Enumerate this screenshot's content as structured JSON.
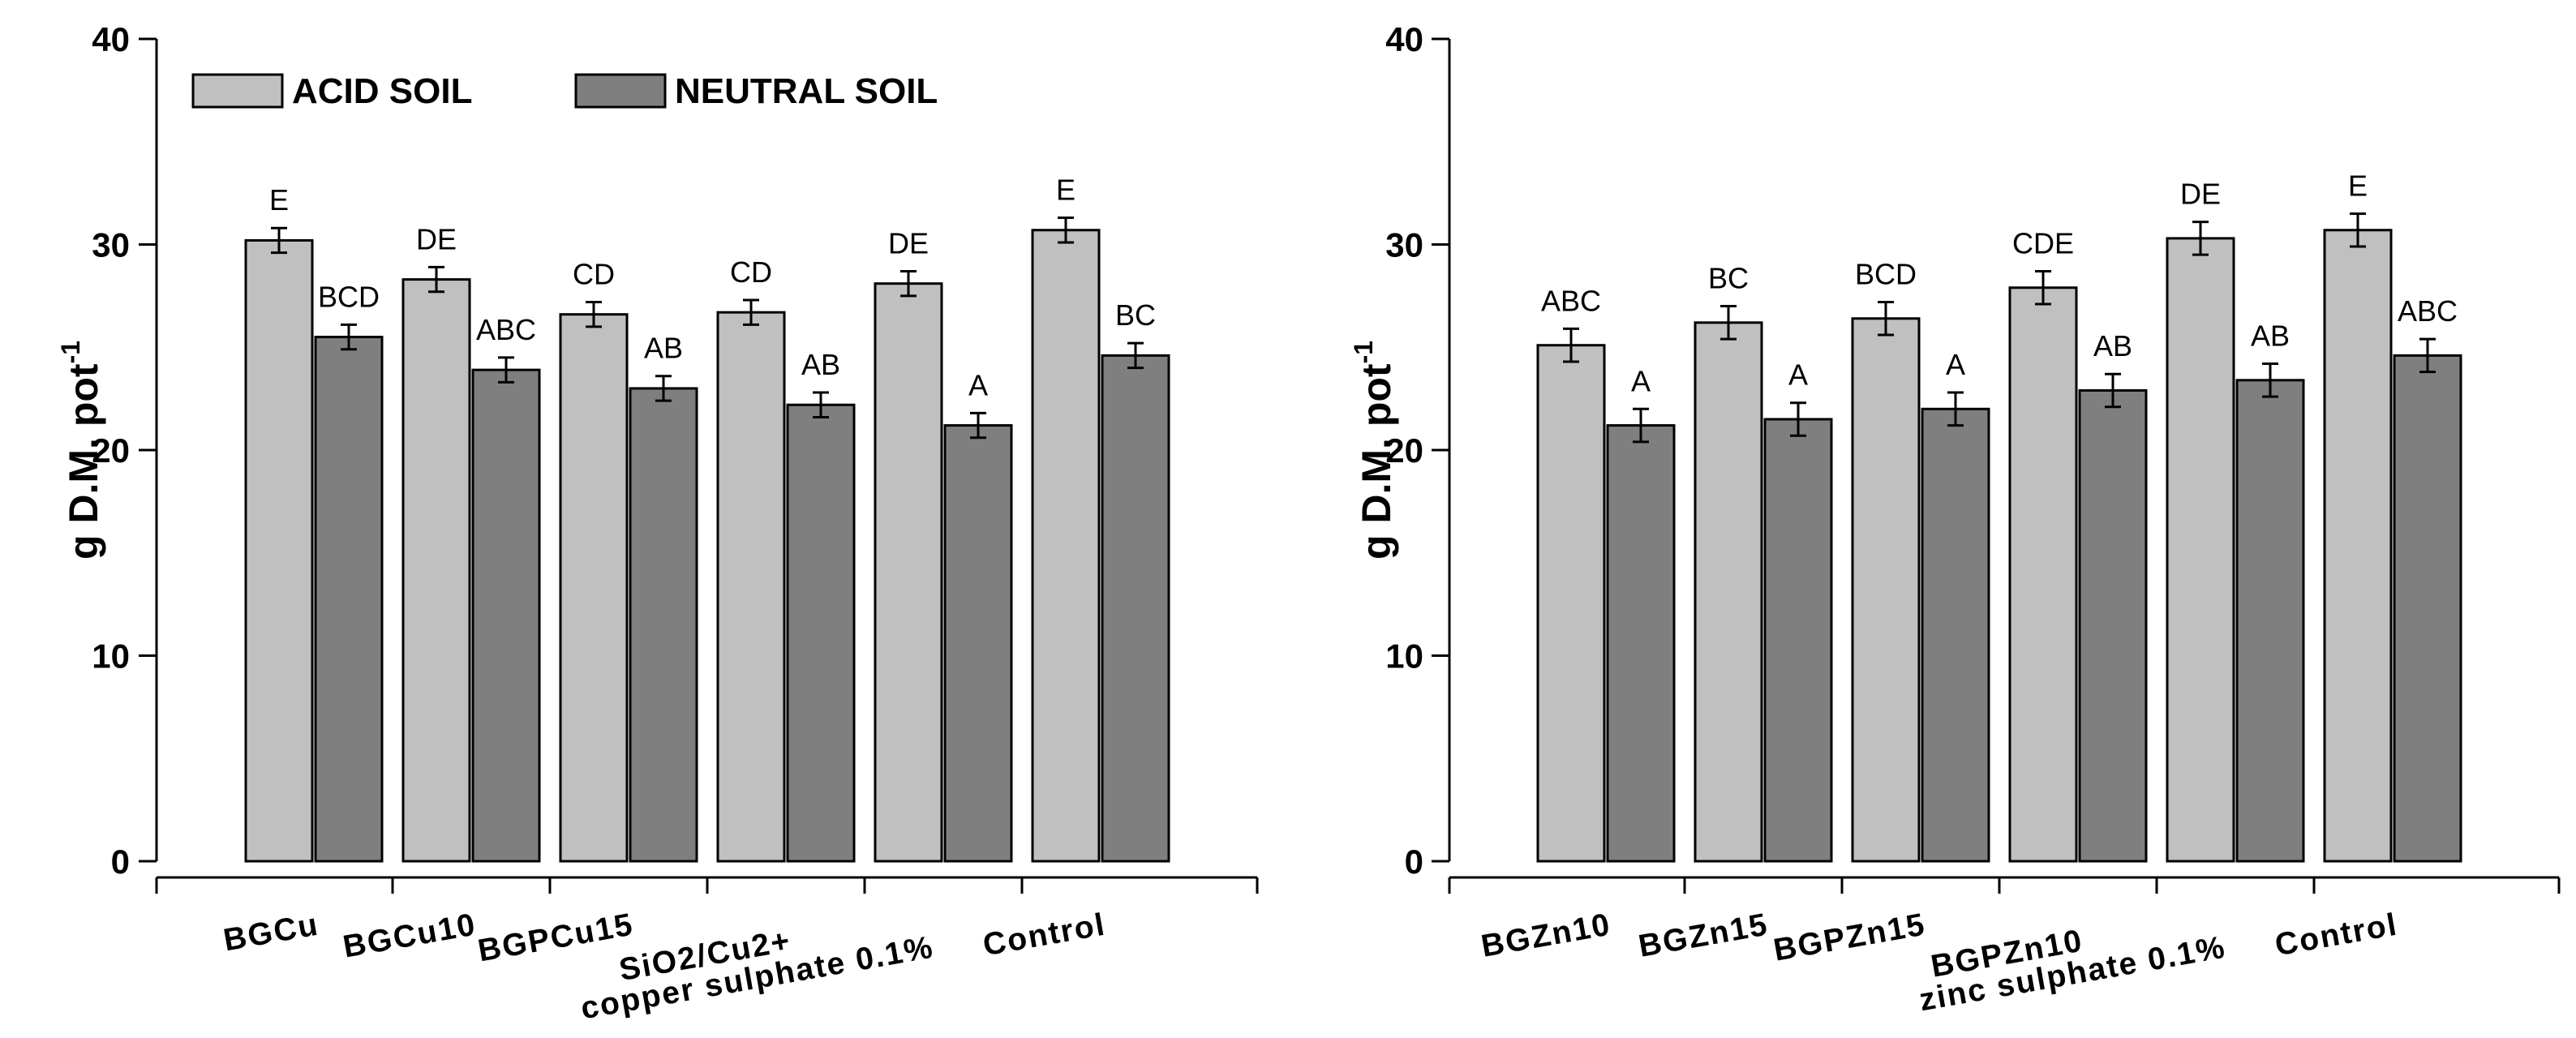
{
  "chart_data": [
    {
      "type": "bar",
      "categories": [
        [
          "BGCu"
        ],
        [
          "BGCu10"
        ],
        [
          "BGPCu15"
        ],
        [
          "SiO2/Cu2+"
        ],
        [
          "copper sulphate 0.1%"
        ],
        [
          "Control"
        ]
      ],
      "series": [
        {
          "name": "ACID SOIL",
          "color": "#c0c0c0",
          "values": [
            30.2,
            28.3,
            26.6,
            26.7,
            28.1,
            30.7
          ],
          "errors": [
            0.6,
            0.6,
            0.6,
            0.6,
            0.6,
            0.6
          ],
          "letters": [
            "E",
            "DE",
            "CD",
            "CD",
            "DE",
            "E"
          ]
        },
        {
          "name": "NEUTRAL SOIL",
          "color": "#7f7f7f",
          "values": [
            25.5,
            23.9,
            23.0,
            22.2,
            21.2,
            24.6
          ],
          "errors": [
            0.6,
            0.6,
            0.6,
            0.6,
            0.6,
            0.6
          ],
          "letters": [
            "BCD",
            "ABC",
            "AB",
            "AB",
            "A",
            "BC"
          ]
        }
      ],
      "ylabel": "g D.M. pot",
      "ylabel_sup": "-1",
      "ylim": [
        0,
        40
      ],
      "yticks": [
        0,
        10,
        20,
        30,
        40
      ],
      "legend": "top-left"
    },
    {
      "type": "bar",
      "categories": [
        [
          "BGZn10"
        ],
        [
          "BGZn15"
        ],
        [
          "BGPZn15"
        ],
        [
          "BGPZn10"
        ],
        [
          "zinc sulphate 0.1%"
        ],
        [
          "Control"
        ]
      ],
      "series": [
        {
          "name": "ACID SOIL",
          "color": "#c0c0c0",
          "values": [
            25.1,
            26.2,
            26.4,
            27.9,
            30.3,
            30.7
          ],
          "errors": [
            0.8,
            0.8,
            0.8,
            0.8,
            0.8,
            0.8
          ],
          "letters": [
            "ABC",
            "BC",
            "BCD",
            "CDE",
            "DE",
            "E"
          ]
        },
        {
          "name": "NEUTRAL SOIL",
          "color": "#7f7f7f",
          "values": [
            21.2,
            21.5,
            22.0,
            22.9,
            23.4,
            24.6
          ],
          "errors": [
            0.8,
            0.8,
            0.8,
            0.8,
            0.8,
            0.8
          ],
          "letters": [
            "A",
            "A",
            "A",
            "AB",
            "AB",
            "ABC"
          ]
        }
      ],
      "ylabel": "g D.M. pot",
      "ylabel_sup": "-1",
      "ylim": [
        0,
        40
      ],
      "yticks": [
        0,
        10,
        20,
        30,
        40
      ],
      "legend": "none"
    }
  ]
}
